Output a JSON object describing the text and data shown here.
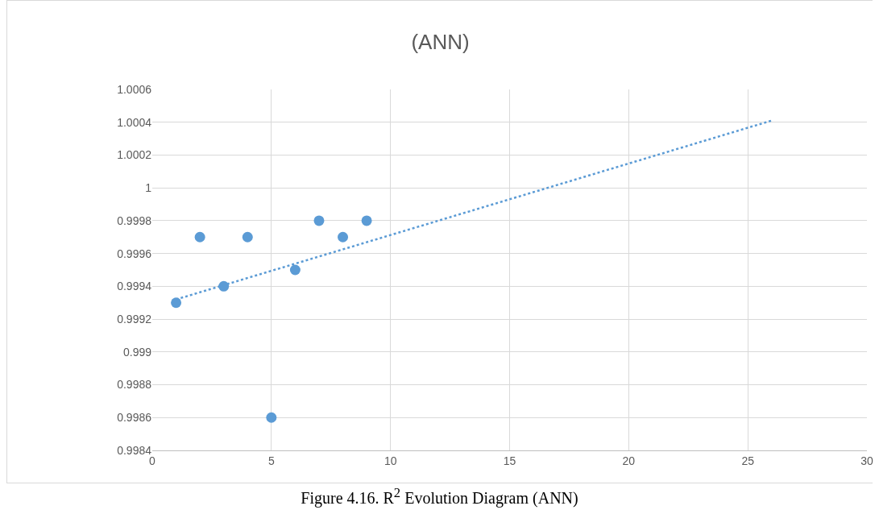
{
  "chart_data": {
    "type": "scatter",
    "title": "(ANN)",
    "series": [
      {
        "type": "scatter",
        "color": "#5b9bd5",
        "marker": "circle",
        "x": [
          1,
          2,
          3,
          4,
          5,
          6,
          7,
          8,
          9
        ],
        "values": [
          0.9993,
          0.9997,
          0.9994,
          0.9997,
          0.9986,
          0.9995,
          0.9998,
          0.9997,
          0.9998
        ]
      },
      {
        "type": "line",
        "color": "#5b9bd5",
        "line_style": "dotted",
        "marker": "none",
        "x": [
          1,
          26
        ],
        "values": [
          0.99932,
          1.00041
        ]
      }
    ],
    "xlim": [
      0,
      30
    ],
    "xticks": [
      0,
      5,
      10,
      15,
      20,
      25,
      30
    ],
    "ylim": [
      0.9984,
      1.0006
    ],
    "yticks": [
      0.9984,
      0.9986,
      0.9988,
      0.999,
      0.9992,
      0.9994,
      0.9996,
      0.9998,
      1,
      1.0002,
      1.0004,
      1.0006
    ],
    "grid": true,
    "legend": false,
    "annotations": [
      "Figure 4.16. R$^{2}$ Evolution Diagram (ANN)"
    ]
  }
}
